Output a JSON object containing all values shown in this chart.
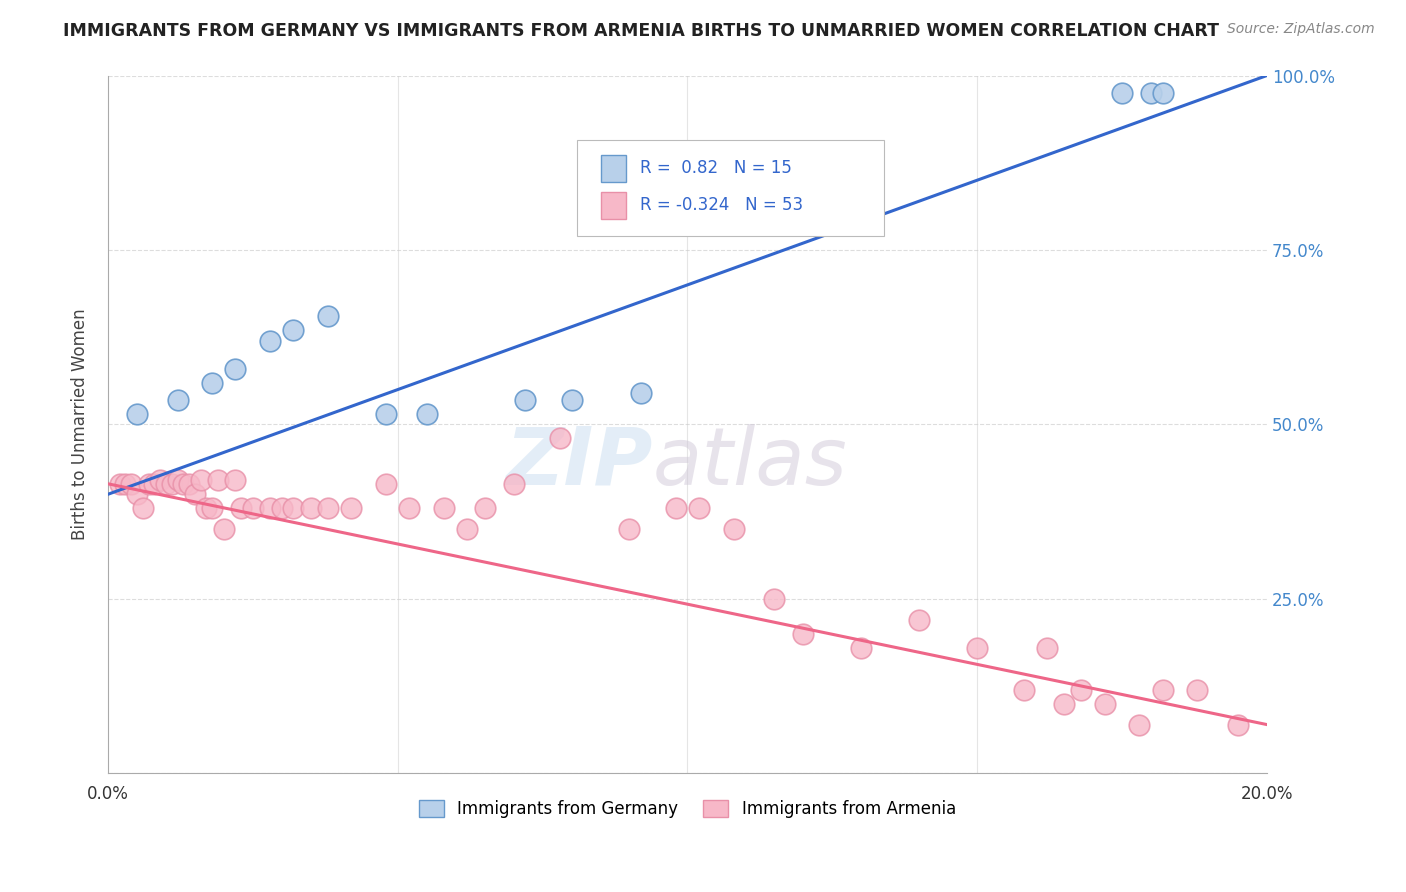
{
  "title": "IMMIGRANTS FROM GERMANY VS IMMIGRANTS FROM ARMENIA BIRTHS TO UNMARRIED WOMEN CORRELATION CHART",
  "source": "Source: ZipAtlas.com",
  "ylabel": "Births to Unmarried Women",
  "xlabel": "",
  "legend_label1": "Immigrants from Germany",
  "legend_label2": "Immigrants from Armenia",
  "R1": 0.82,
  "N1": 15,
  "R2": -0.324,
  "N2": 53,
  "color1": "#b8d0ea",
  "color2": "#f7b8c8",
  "line_color1": "#3366cc",
  "line_color2": "#ee6688",
  "xlim": [
    0.0,
    0.2
  ],
  "ylim": [
    0.0,
    1.0
  ],
  "watermark": "ZIPatlas",
  "background_color": "#ffffff",
  "grid_color": "#dddddd",
  "germany_x": [
    0.005,
    0.012,
    0.018,
    0.022,
    0.028,
    0.032,
    0.038,
    0.048,
    0.055,
    0.072,
    0.08,
    0.092,
    0.175,
    0.18,
    0.182
  ],
  "germany_y": [
    0.515,
    0.535,
    0.56,
    0.58,
    0.62,
    0.635,
    0.655,
    0.515,
    0.515,
    0.535,
    0.535,
    0.545,
    0.975,
    0.975,
    0.975
  ],
  "armenia_x": [
    0.002,
    0.003,
    0.004,
    0.005,
    0.006,
    0.007,
    0.008,
    0.009,
    0.01,
    0.011,
    0.012,
    0.013,
    0.014,
    0.015,
    0.016,
    0.017,
    0.018,
    0.019,
    0.02,
    0.022,
    0.023,
    0.025,
    0.028,
    0.03,
    0.032,
    0.035,
    0.038,
    0.042,
    0.048,
    0.052,
    0.058,
    0.062,
    0.065,
    0.07,
    0.078,
    0.09,
    0.098,
    0.102,
    0.108,
    0.115,
    0.12,
    0.13,
    0.14,
    0.15,
    0.158,
    0.162,
    0.165,
    0.168,
    0.172,
    0.178,
    0.182,
    0.188,
    0.195
  ],
  "armenia_y": [
    0.415,
    0.415,
    0.415,
    0.4,
    0.38,
    0.415,
    0.415,
    0.42,
    0.415,
    0.415,
    0.42,
    0.415,
    0.415,
    0.4,
    0.42,
    0.38,
    0.38,
    0.42,
    0.35,
    0.42,
    0.38,
    0.38,
    0.38,
    0.38,
    0.38,
    0.38,
    0.38,
    0.38,
    0.415,
    0.38,
    0.38,
    0.35,
    0.38,
    0.415,
    0.48,
    0.35,
    0.38,
    0.38,
    0.35,
    0.25,
    0.2,
    0.18,
    0.22,
    0.18,
    0.12,
    0.18,
    0.1,
    0.12,
    0.1,
    0.07,
    0.12,
    0.12,
    0.07
  ]
}
